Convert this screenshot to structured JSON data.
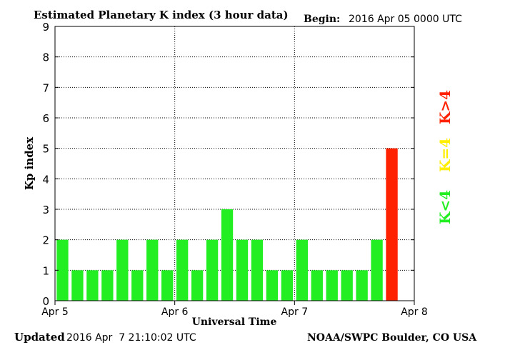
{
  "header": {
    "title": "Estimated Planetary K index (3 hour data)",
    "begin_label": "Begin:",
    "begin_value": "2016 Apr 05 0000 UTC"
  },
  "footer": {
    "updated_label": "Updated",
    "updated_value": "2016 Apr  7 21:10:02 UTC",
    "credit": "NOAA/SWPC Boulder, CO USA"
  },
  "legend": [
    {
      "label": "K<4",
      "color": "#22ee22"
    },
    {
      "label": "K=4",
      "color": "#ffee00"
    },
    {
      "label": "K>4",
      "color": "#ff2200"
    }
  ],
  "chart_data": {
    "type": "bar",
    "title": "Estimated Planetary K index (3 hour data)",
    "xlabel": "Universal Time",
    "ylabel": "Kp index",
    "ylim": [
      0,
      9
    ],
    "yticks": [
      "0",
      "1",
      "2",
      "3",
      "4",
      "5",
      "6",
      "7",
      "8",
      "9"
    ],
    "xticks": [
      "Apr 5",
      "Apr 6",
      "Apr 7",
      "Apr 8"
    ],
    "grid": true,
    "values": [
      2,
      1,
      1,
      1,
      2,
      1,
      2,
      1,
      2,
      1,
      2,
      3,
      2,
      2,
      1,
      1,
      2,
      1,
      1,
      1,
      1,
      2,
      5
    ],
    "colors": {
      "low": "#22ee22",
      "equal": "#ffee00",
      "high": "#ff2200"
    }
  }
}
